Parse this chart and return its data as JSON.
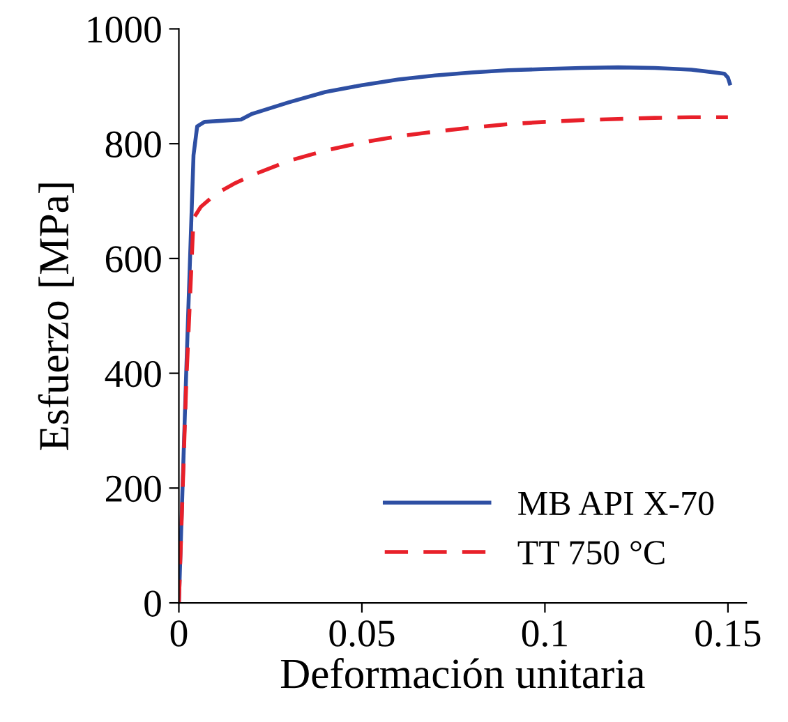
{
  "chart_data": {
    "type": "line",
    "xlabel": "Deformación unitaria",
    "ylabel": "Esfuerzo [MPa]",
    "xlim": [
      0,
      0.155
    ],
    "ylim": [
      0,
      1000
    ],
    "xticks": [
      0,
      0.05,
      {
        "value": 0.1,
        "label": "0.1"
      },
      0.15
    ],
    "yticks": [
      0,
      200,
      400,
      600,
      800,
      1000
    ],
    "grid": false,
    "legend": "bottom right",
    "series": [
      {
        "name": "MB API X-70",
        "color": "#2e4fa3",
        "line_style": "solid",
        "x": [
          0,
          0.002,
          0.004,
          0.005,
          0.007,
          0.012,
          0.017,
          0.02,
          0.03,
          0.04,
          0.05,
          0.06,
          0.07,
          0.08,
          0.09,
          0.1,
          0.11,
          0.12,
          0.13,
          0.14,
          0.149,
          0.15,
          0.1505
        ],
        "values": [
          0,
          400,
          780,
          830,
          838,
          840,
          842,
          852,
          872,
          890,
          902,
          912,
          919,
          924,
          928,
          930,
          932,
          933,
          932,
          929,
          922,
          915,
          905
        ]
      },
      {
        "name": "TT 750 °C",
        "color": "#e8202a",
        "line_style": "dashed",
        "x": [
          0,
          0.002,
          0.004,
          0.006,
          0.01,
          0.015,
          0.02,
          0.03,
          0.04,
          0.05,
          0.06,
          0.07,
          0.08,
          0.09,
          0.1,
          0.11,
          0.12,
          0.13,
          0.14,
          0.15
        ],
        "values": [
          0,
          380,
          670,
          690,
          712,
          730,
          745,
          770,
          788,
          802,
          813,
          821,
          828,
          834,
          838,
          841,
          843,
          845,
          846,
          846
        ]
      }
    ]
  }
}
